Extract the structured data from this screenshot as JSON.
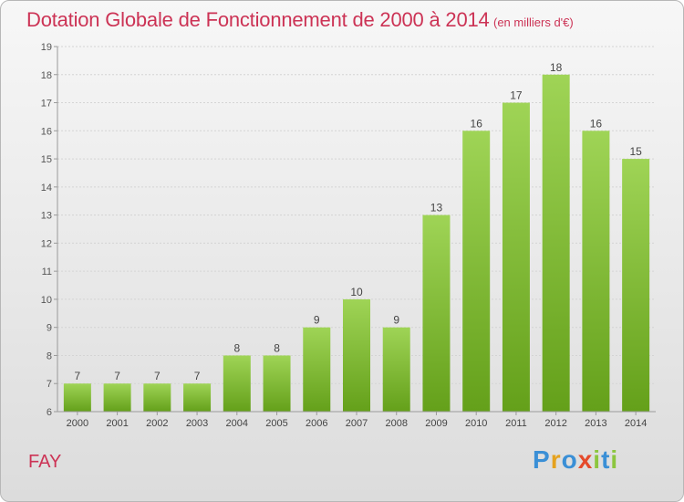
{
  "header": {
    "title": "Dotation Globale de Fonctionnement de 2000 à 2014",
    "unit_note": "(en milliers d'€)"
  },
  "commune": "FAY",
  "logo": {
    "text": "Proxiti",
    "letters": [
      {
        "ch": "P",
        "color": "#3a8fd6"
      },
      {
        "ch": "r",
        "color": "#e5a21e"
      },
      {
        "ch": "o",
        "color": "#3a8fd6"
      },
      {
        "ch": "x",
        "color": "#e54a2b"
      },
      {
        "ch": "i",
        "color": "#8cc63f"
      },
      {
        "ch": "t",
        "color": "#3a8fd6"
      },
      {
        "ch": "i",
        "color": "#8cc63f"
      }
    ]
  },
  "colors": {
    "title": "#cc3355",
    "bar_top": "#9fd456",
    "bar_bottom": "#64a01a",
    "axis": "#9a9a9a",
    "grid": "#d4d4d4"
  },
  "chart_data": {
    "type": "bar",
    "title": "Dotation Globale de Fonctionnement de 2000 à 2014",
    "subtitle": "(en milliers d'€)",
    "categories": [
      "2000",
      "2001",
      "2002",
      "2003",
      "2004",
      "2005",
      "2006",
      "2007",
      "2008",
      "2009",
      "2010",
      "2011",
      "2012",
      "2013",
      "2014"
    ],
    "values": [
      7,
      7,
      7,
      7,
      8,
      8,
      9,
      10,
      9,
      13,
      16,
      17,
      18,
      16,
      15
    ],
    "ylim": [
      6,
      19
    ],
    "yticks": [
      6,
      7,
      8,
      9,
      10,
      11,
      12,
      13,
      14,
      15,
      16,
      17,
      18,
      19
    ],
    "xlabel": "",
    "ylabel": "",
    "grid": true,
    "data_labels": true
  }
}
